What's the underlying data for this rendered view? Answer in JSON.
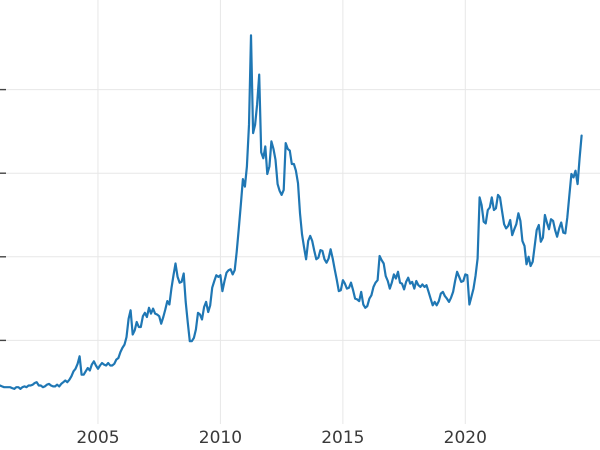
{
  "chart_data": {
    "type": "line",
    "title": "",
    "xlabel": "",
    "ylabel": "",
    "grid": true,
    "legend": false,
    "background_color": "#ffffff",
    "line_color": "#1f77b4",
    "grid_color": "#e7e7e7",
    "tick_label_color": "#3a3a3a",
    "tick_mark_color": "#444444",
    "ylim": [
      0,
      50
    ],
    "x_domain": [
      2001.0,
      2025.5
    ],
    "x_start": 2001.0,
    "points_per_year": 12,
    "x_ticks": [
      {
        "value": 2005,
        "label": "2005"
      },
      {
        "value": 2010,
        "label": "2010"
      },
      {
        "value": 2015,
        "label": "2015"
      },
      {
        "value": 2020,
        "label": "2020"
      }
    ],
    "y_grid_values": [
      10,
      20,
      30,
      40
    ],
    "values": [
      4.6,
      4.5,
      4.4,
      4.4,
      4.4,
      4.4,
      4.3,
      4.2,
      4.4,
      4.4,
      4.2,
      4.4,
      4.5,
      4.4,
      4.6,
      4.6,
      4.7,
      4.9,
      5.0,
      4.6,
      4.6,
      4.4,
      4.5,
      4.7,
      4.8,
      4.6,
      4.5,
      4.5,
      4.7,
      4.5,
      4.8,
      5.0,
      5.2,
      5.0,
      5.3,
      5.7,
      6.3,
      6.6,
      7.2,
      8.1,
      5.9,
      5.9,
      6.3,
      6.7,
      6.4,
      7.1,
      7.5,
      7.0,
      6.6,
      7.0,
      7.3,
      7.1,
      7.0,
      7.3,
      7.0,
      7.0,
      7.2,
      7.7,
      7.9,
      8.6,
      9.1,
      9.5,
      10.4,
      12.6,
      13.6,
      10.7,
      11.2,
      12.2,
      11.6,
      11.6,
      12.9,
      13.3,
      12.8,
      13.9,
      13.2,
      13.8,
      13.2,
      13.1,
      12.9,
      12.0,
      12.8,
      13.7,
      14.7,
      14.3,
      16.2,
      17.8,
      19.2,
      17.6,
      16.9,
      17.0,
      18.0,
      14.6,
      12.1,
      9.9,
      9.9,
      10.3,
      11.3,
      13.3,
      13.1,
      12.5,
      14.0,
      14.6,
      13.4,
      14.2,
      16.3,
      17.1,
      17.8,
      17.6,
      17.8,
      15.9,
      17.1,
      18.1,
      18.4,
      18.5,
      17.9,
      18.4,
      20.6,
      23.4,
      26.2,
      29.3,
      28.4,
      30.8,
      35.8,
      46.5,
      34.8,
      35.8,
      38.2,
      41.8,
      32.5,
      31.8,
      33.2,
      29.9,
      30.8,
      33.8,
      32.9,
      31.6,
      28.7,
      27.9,
      27.4,
      28.0,
      33.6,
      32.9,
      32.7,
      31.1,
      31.1,
      30.3,
      28.8,
      25.2,
      22.7,
      21.1,
      19.7,
      21.9,
      22.5,
      21.9,
      20.7,
      19.7,
      19.9,
      20.8,
      20.7,
      19.7,
      19.3,
      19.8,
      20.9,
      19.8,
      18.5,
      17.3,
      15.9,
      16.0,
      17.2,
      16.8,
      16.2,
      16.3,
      16.9,
      16.0,
      15.0,
      14.9,
      14.7,
      15.8,
      14.3,
      13.9,
      14.1,
      15.0,
      15.4,
      16.4,
      16.9,
      17.2,
      20.1,
      19.6,
      19.2,
      17.7,
      17.1,
      16.2,
      16.9,
      17.9,
      17.4,
      18.2,
      16.9,
      16.8,
      16.1,
      17.0,
      17.5,
      16.8,
      17.0,
      16.2,
      17.1,
      16.6,
      16.4,
      16.7,
      16.4,
      16.6,
      15.8,
      15.0,
      14.2,
      14.6,
      14.2,
      14.7,
      15.6,
      15.8,
      15.3,
      15.0,
      14.6,
      15.1,
      15.8,
      17.1,
      18.2,
      17.6,
      17.0,
      17.1,
      17.9,
      17.8,
      14.3,
      15.2,
      16.2,
      17.7,
      19.8,
      27.1,
      26.2,
      24.2,
      24.0,
      25.6,
      25.9,
      27.1,
      25.6,
      25.8,
      27.4,
      27.1,
      25.5,
      23.9,
      23.4,
      23.7,
      24.4,
      22.6,
      23.3,
      23.9,
      25.2,
      24.3,
      21.9,
      21.3,
      19.1,
      20.0,
      18.9,
      19.4,
      21.3,
      23.2,
      23.8,
      21.8,
      22.3,
      25.0,
      24.1,
      23.3,
      24.5,
      24.3,
      23.2,
      22.4,
      23.4,
      24.1,
      22.9,
      22.8,
      24.7,
      27.4,
      29.9,
      29.5,
      30.3,
      28.7,
      31.8,
      34.5
    ]
  }
}
